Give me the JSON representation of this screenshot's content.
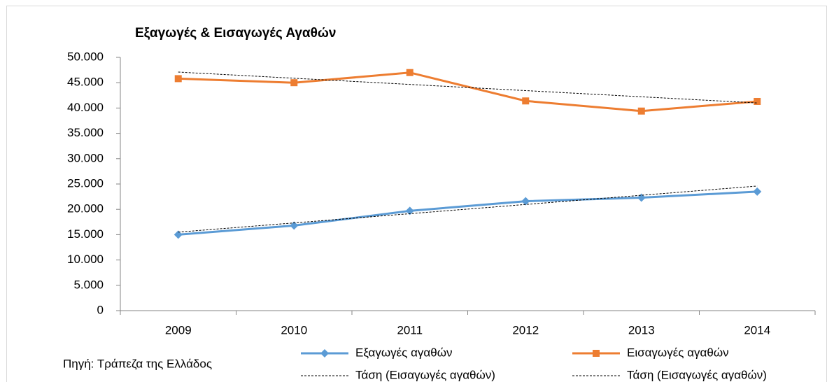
{
  "chart_data": {
    "type": "line",
    "title": "Εξαγωγές & Εισαγωγές Αγαθών",
    "source": "Πηγή: Τράπεζα της Ελλάδος",
    "categories": [
      "2009",
      "2010",
      "2011",
      "2012",
      "2013",
      "2014"
    ],
    "series": [
      {
        "name": "Εξαγωγές αγαθών",
        "color": "#5b9bd5",
        "marker": "diamond",
        "values": [
          15000,
          16800,
          19700,
          21600,
          22300,
          23500
        ]
      },
      {
        "name": "Εισαγωγές αγαθών",
        "color": "#ed7d31",
        "marker": "square",
        "values": [
          45800,
          45000,
          47000,
          41400,
          39400,
          41300
        ]
      },
      {
        "name": "Τάση (Εισαγωγές αγαθών)",
        "color": "#000000",
        "dashed": true,
        "values": [
          15500,
          17320,
          19140,
          20960,
          22780,
          24600
        ]
      },
      {
        "name": "Τάση (Εισαγωγές αγαθών)",
        "color": "#000000",
        "dashed": true,
        "values": [
          47100,
          45880,
          44660,
          43440,
          42220,
          41000
        ]
      }
    ],
    "ylim": [
      0,
      50000
    ],
    "yticks": [
      0,
      {
        "value": 5000,
        "label": "5.000"
      },
      {
        "value": 10000,
        "label": "10.000"
      },
      {
        "value": 15000,
        "label": "15.000"
      },
      {
        "value": 20000,
        "label": "20.000"
      },
      {
        "value": 25000,
        "label": "25.000"
      },
      {
        "value": 30000,
        "label": "30.000"
      },
      {
        "value": 35000,
        "label": "35.000"
      },
      {
        "value": 40000,
        "label": "40.000"
      },
      {
        "value": 45000,
        "label": "45.000"
      },
      {
        "value": 50000,
        "label": "50.000"
      }
    ],
    "grid": false,
    "legend": "bottom"
  }
}
